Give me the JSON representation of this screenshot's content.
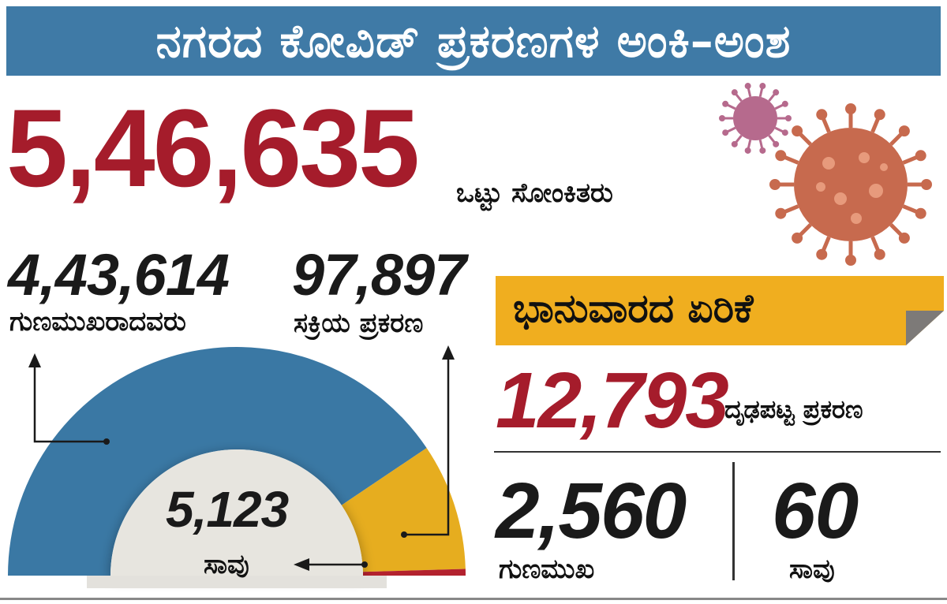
{
  "title": "ನಗರದ ಕೋವಿಡ್ ಪ್ರಕರಣಗಳ ಅಂಕಿ–ಅಂಶ",
  "total": {
    "value": "5,46,635",
    "label": "ಒಟ್ಟು ಸೋಂಕಿತರು"
  },
  "recovered": {
    "value": "4,43,614",
    "label": "ಗುಣಮುಖರಾದವರು"
  },
  "active": {
    "value": "97,897",
    "label": "ಸಕ್ರಿಯ ಪ್ರಕರಣ"
  },
  "deaths": {
    "value": "5,123",
    "label": "ಸಾವು"
  },
  "sunday": {
    "heading": "ಭಾನುವಾರದ ಏರಿಕೆ",
    "confirmed": {
      "value": "12,793",
      "label": "ದೃಢಪಟ್ಟ ಪ್ರಕರಣ"
    },
    "recovered": {
      "value": "2,560",
      "label": "ಗುಣಮುಖ"
    },
    "deaths": {
      "value": "60",
      "label": "ಸಾವು"
    }
  },
  "colors": {
    "title_bar": "#3f7aa6",
    "red_text": "#a51c2b",
    "recovered": "#3a78a4",
    "active": "#e6ad1f",
    "deaths": "#b3222e",
    "sunday_box": "#f0ae1f",
    "center": "#e7e5df"
  },
  "chart_data": {
    "type": "pie",
    "shape": "half-donut",
    "categories": [
      "ಗುಣಮುಖರಾದವರು",
      "ಸಕ್ರಿಯ ಪ್ರಕರಣ",
      "ಸಾವು"
    ],
    "values": [
      443614,
      97897,
      5123
    ]
  },
  "icons": [
    "virus-icon-small",
    "virus-icon-large",
    "arrow-up-icon",
    "arrow-left-icon"
  ]
}
